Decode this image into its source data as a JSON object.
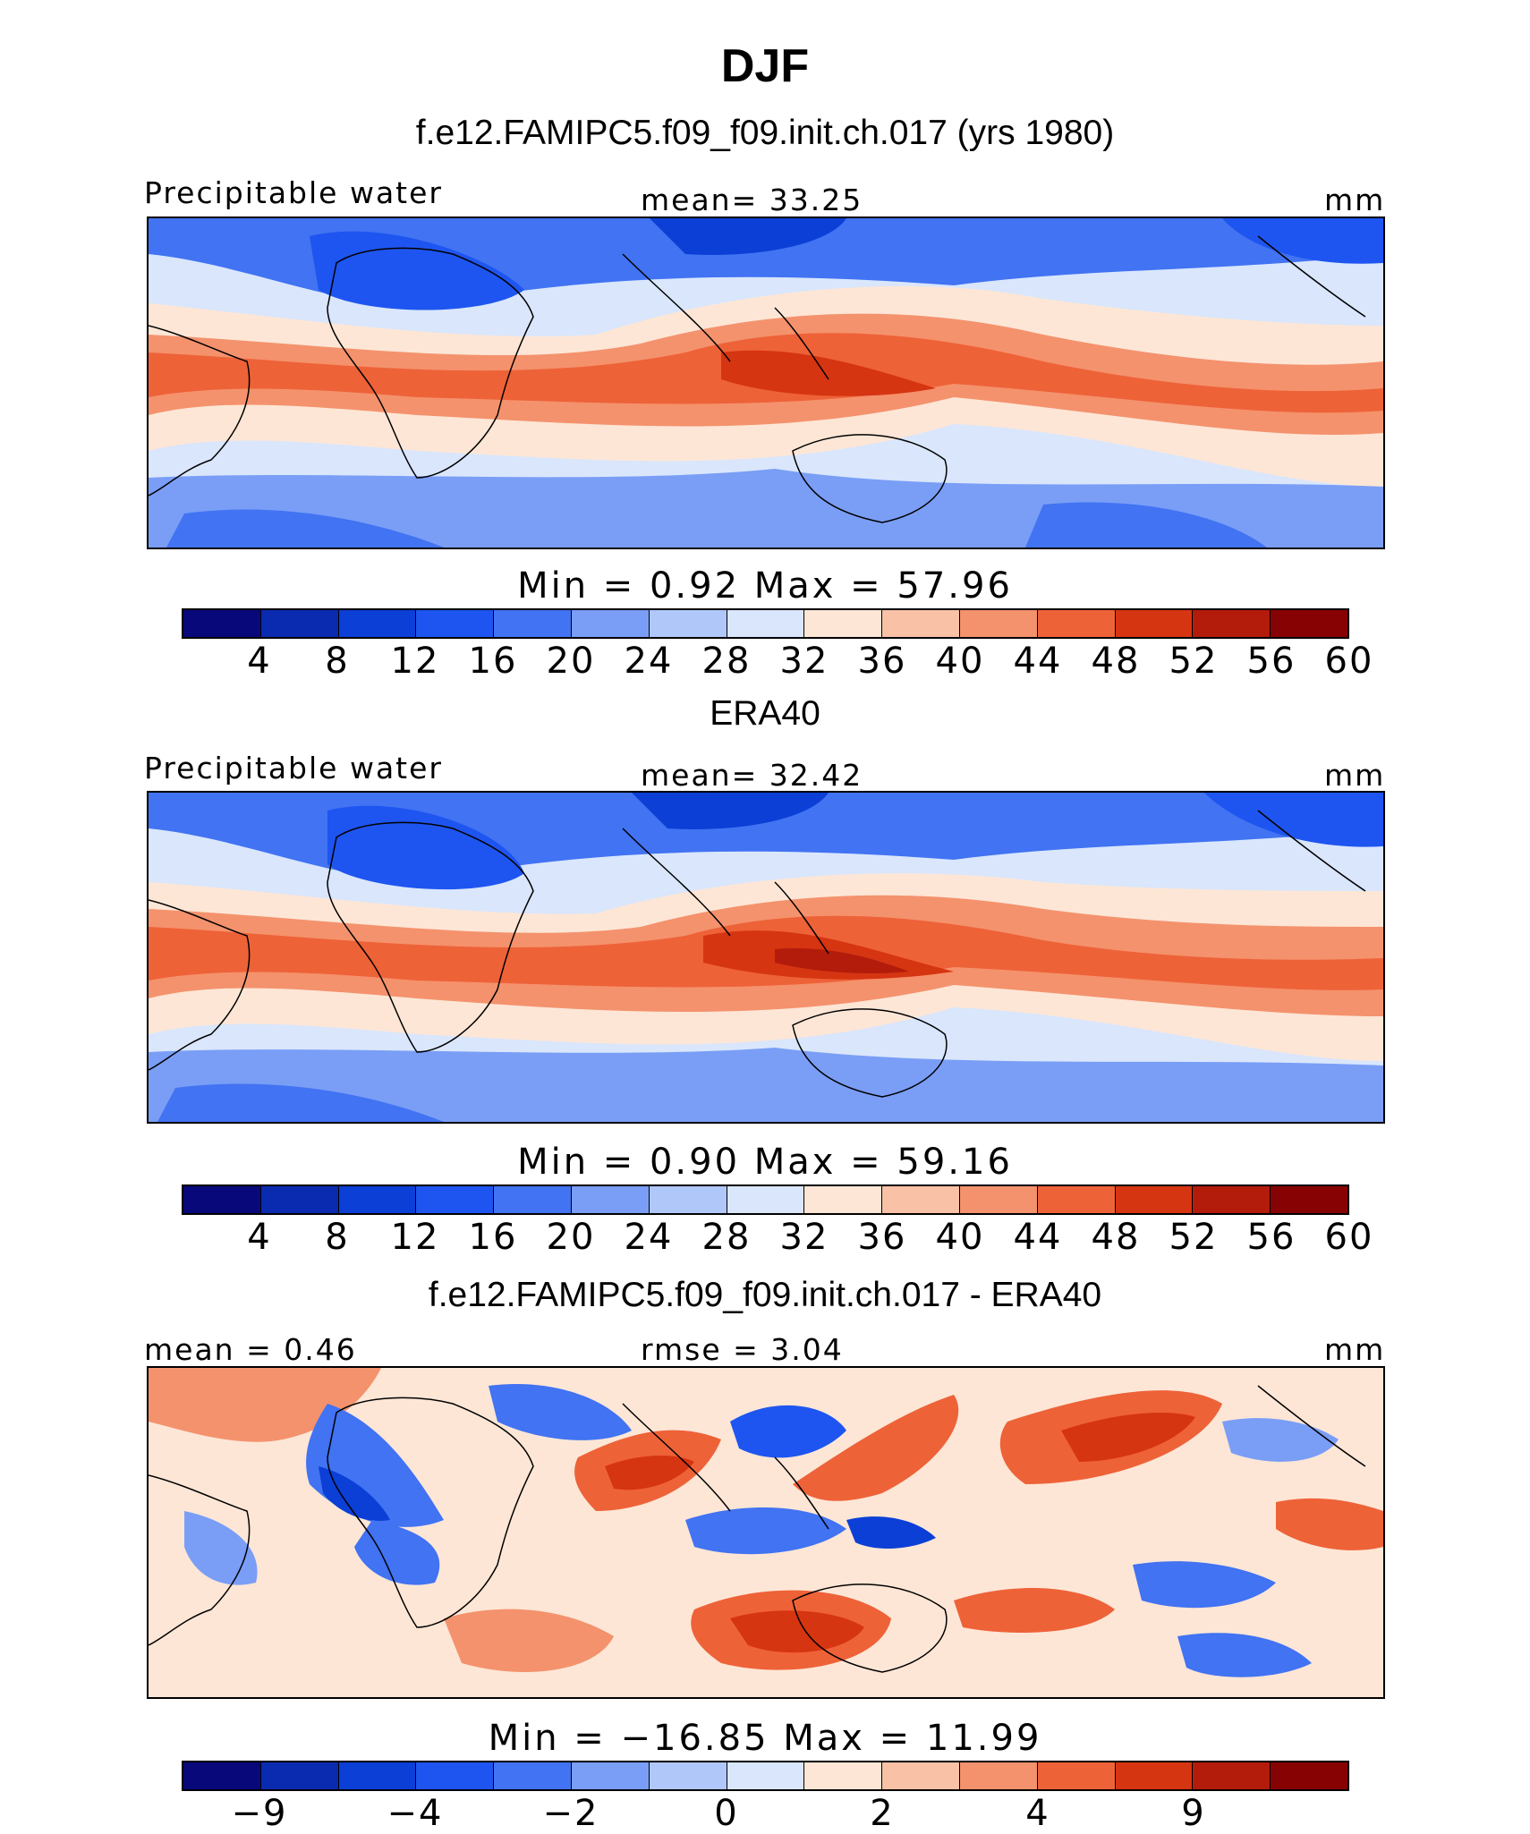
{
  "title": "DJF",
  "panels": [
    {
      "title": "f.e12.FAMIPC5.f09_f09.init.ch.017 (yrs 1980)",
      "left_label": "Precipitable water",
      "center_label": "mean=   33.25",
      "right_label": "mm",
      "stats": "Min  =     0.92  Max  =    57.96",
      "colorbar_labels": [
        "4",
        "8",
        "12",
        "16",
        "20",
        "24",
        "28",
        "32",
        "36",
        "40",
        "44",
        "48",
        "52",
        "56",
        "60"
      ]
    },
    {
      "title": "ERA40",
      "left_label": "Precipitable water",
      "center_label": "mean=   32.42",
      "right_label": "mm",
      "stats": "Min  =     0.90  Max  =    59.16",
      "colorbar_labels": [
        "4",
        "8",
        "12",
        "16",
        "20",
        "24",
        "28",
        "32",
        "36",
        "40",
        "44",
        "48",
        "52",
        "56",
        "60"
      ]
    },
    {
      "title": "f.e12.FAMIPC5.f09_f09.init.ch.017 - ERA40",
      "left_label": "mean  =     0.46",
      "center_label": "rmse  =     3.04",
      "right_label": "mm",
      "stats": "Min  = −16.85  Max  =    11.99",
      "colorbar_labels": [
        "−9",
        "",
        "−4",
        "",
        "−2",
        "",
        "0",
        "",
        "2",
        "",
        "4",
        "",
        "9"
      ]
    }
  ],
  "colorbar_colors": [
    "#08087a",
    "#0a2bb0",
    "#0b3fd6",
    "#1e55f0",
    "#4173f2",
    "#7a9ef6",
    "#b0c8f9",
    "#d9e6fc",
    "#fde6d6",
    "#f9c1a6",
    "#f4926d",
    "#ee6238",
    "#d63512",
    "#b31c0b",
    "#870303"
  ],
  "map_palette": {
    "cold": "#0b3fd6",
    "cool": "#b0c8f9",
    "neutral": "#fdf0e8",
    "warm": "#f4926d",
    "hot": "#d63512"
  }
}
